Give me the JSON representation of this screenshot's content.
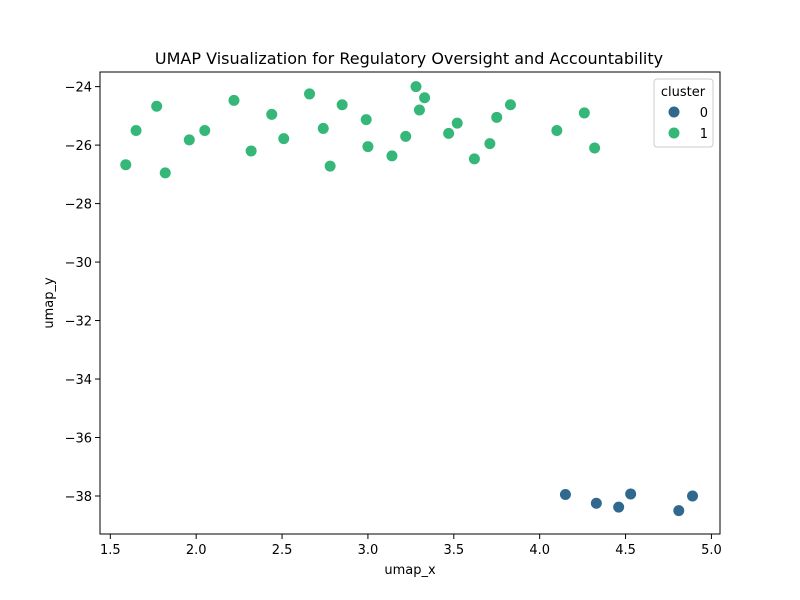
{
  "chart_data": {
    "type": "scatter",
    "title": "UMAP Visualization for Regulatory Oversight and Accountability",
    "xlabel": "umap_x",
    "ylabel": "umap_y",
    "xlim": [
      1.44,
      5.05
    ],
    "ylim": [
      -39.3,
      -23.5
    ],
    "xticks": [
      1.5,
      2.0,
      2.5,
      3.0,
      3.5,
      4.0,
      4.5,
      5.0
    ],
    "xtick_labels": [
      "1.5",
      "2.0",
      "2.5",
      "3.0",
      "3.5",
      "4.0",
      "4.5",
      "5.0"
    ],
    "yticks": [
      -24,
      -26,
      -28,
      -30,
      -32,
      -34,
      -36,
      -38
    ],
    "ytick_labels": [
      "−24",
      "−26",
      "−28",
      "−30",
      "−32",
      "−34",
      "−36",
      "−38"
    ],
    "grid": false,
    "legend": {
      "title": "cluster",
      "position": "top-right"
    },
    "series": [
      {
        "name": "0",
        "color": "#31688e",
        "points": [
          [
            4.15,
            -37.95
          ],
          [
            4.33,
            -38.25
          ],
          [
            4.46,
            -38.38
          ],
          [
            4.53,
            -37.93
          ],
          [
            4.81,
            -38.5
          ],
          [
            4.89,
            -38.0
          ]
        ]
      },
      {
        "name": "1",
        "color": "#35b779",
        "points": [
          [
            1.59,
            -26.67
          ],
          [
            1.65,
            -25.5
          ],
          [
            1.77,
            -24.67
          ],
          [
            1.82,
            -26.95
          ],
          [
            1.96,
            -25.82
          ],
          [
            2.05,
            -25.5
          ],
          [
            2.22,
            -24.47
          ],
          [
            2.32,
            -26.2
          ],
          [
            2.44,
            -24.95
          ],
          [
            2.51,
            -25.78
          ],
          [
            2.66,
            -24.25
          ],
          [
            2.74,
            -25.43
          ],
          [
            2.78,
            -26.72
          ],
          [
            2.85,
            -24.62
          ],
          [
            2.99,
            -25.13
          ],
          [
            3.0,
            -26.05
          ],
          [
            3.14,
            -26.37
          ],
          [
            3.22,
            -25.7
          ],
          [
            3.28,
            -24.0
          ],
          [
            3.3,
            -24.8
          ],
          [
            3.33,
            -24.38
          ],
          [
            3.47,
            -25.6
          ],
          [
            3.52,
            -25.25
          ],
          [
            3.62,
            -26.47
          ],
          [
            3.71,
            -25.95
          ],
          [
            3.75,
            -25.05
          ],
          [
            3.83,
            -24.62
          ],
          [
            4.1,
            -25.5
          ],
          [
            4.26,
            -24.9
          ],
          [
            4.32,
            -26.1
          ]
        ]
      }
    ]
  }
}
